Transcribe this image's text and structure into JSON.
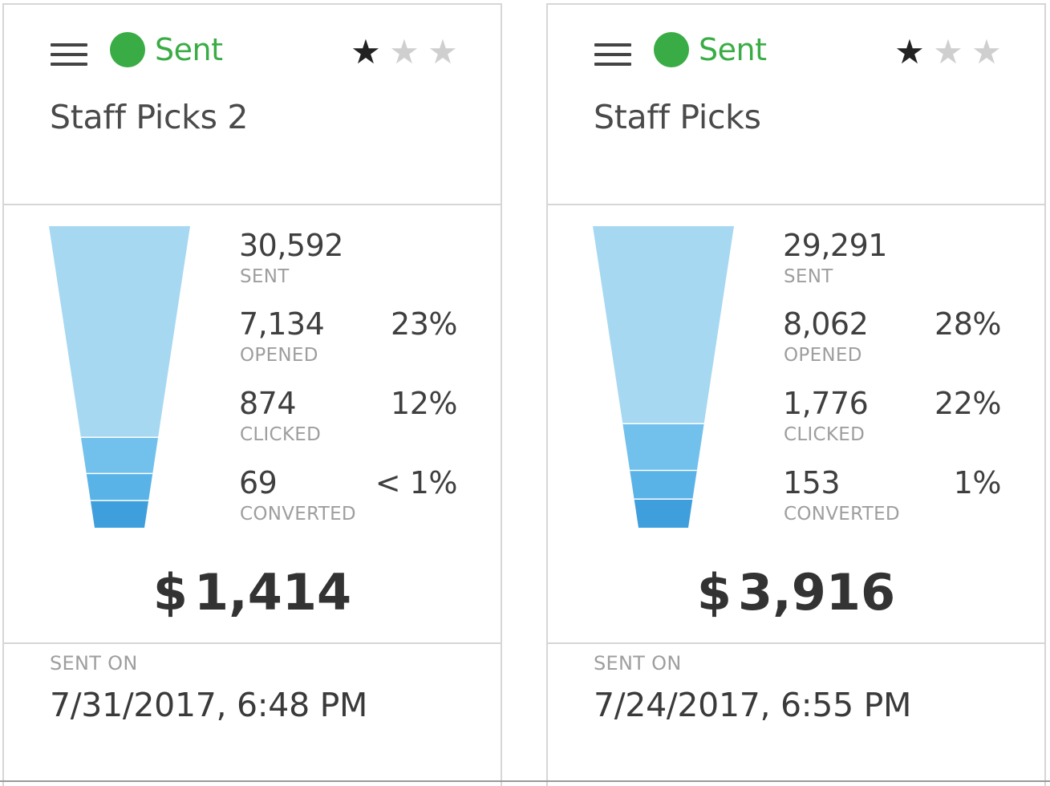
{
  "cards": [
    {
      "status": "Sent",
      "rating": 1,
      "rating_max": 3,
      "title": "Staff Picks 2",
      "metrics": {
        "sent": {
          "value": "30,592",
          "label": "SENT"
        },
        "opened": {
          "value": "7,134",
          "label": "OPENED",
          "pct": "23%"
        },
        "clicked": {
          "value": "874",
          "label": "CLICKED",
          "pct": "12%"
        },
        "converted": {
          "value": "69",
          "label": "CONVERTED",
          "pct": "< 1%"
        }
      },
      "revenue_symbol": "$",
      "revenue": "1,414",
      "sent_on_label": "SENT ON",
      "sent_on": "7/31/2017, 6:48 PM"
    },
    {
      "status": "Sent",
      "rating": 1,
      "rating_max": 3,
      "title": "Staff Picks",
      "metrics": {
        "sent": {
          "value": "29,291",
          "label": "SENT"
        },
        "opened": {
          "value": "8,062",
          "label": "OPENED",
          "pct": "28%"
        },
        "clicked": {
          "value": "1,776",
          "label": "CLICKED",
          "pct": "22%"
        },
        "converted": {
          "value": "153",
          "label": "CONVERTED",
          "pct": "1%"
        }
      },
      "revenue_symbol": "$",
      "revenue": "3,916",
      "sent_on_label": "SENT ON",
      "sent_on": "7/24/2017, 6:55 PM"
    }
  ],
  "colors": {
    "status_green": "#3aac46",
    "funnel_sent": "#a6d8f2",
    "funnel_opened": "#72c1ec",
    "funnel_clicked": "#5ab3e6",
    "funnel_converted": "#3f9fdc"
  },
  "icons": {
    "menu": "hamburger-menu-icon",
    "status": "status-dot-icon",
    "star_filled": "star-filled-icon",
    "star_empty": "star-empty-icon"
  },
  "funnel_bands": [
    {
      "stage": "sent",
      "fraction": 0.7
    },
    {
      "stage": "opened",
      "fraction": 0.12
    },
    {
      "stage": "clicked",
      "fraction": 0.09
    },
    {
      "stage": "converted",
      "fraction": 0.09
    }
  ],
  "funnel_bands_right": [
    {
      "stage": "sent",
      "fraction": 0.655
    },
    {
      "stage": "opened",
      "fraction": 0.155
    },
    {
      "stage": "clicked",
      "fraction": 0.095
    },
    {
      "stage": "converted",
      "fraction": 0.095
    }
  ]
}
